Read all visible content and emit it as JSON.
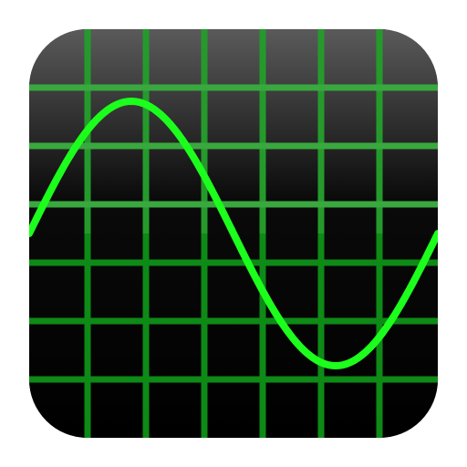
{
  "app_icon": {
    "name": "oscilloscope-icon",
    "colors": {
      "background_top": "#5a5a5a",
      "background_bottom": "#000000",
      "grid": "#0e8a16",
      "grid_highlight": "#39a83f",
      "waveform": "#1cff1c"
    },
    "grid": {
      "vertical_lines": 6,
      "horizontal_lines": 6
    },
    "waveform": {
      "shape": "sine",
      "cycles": 1
    }
  }
}
